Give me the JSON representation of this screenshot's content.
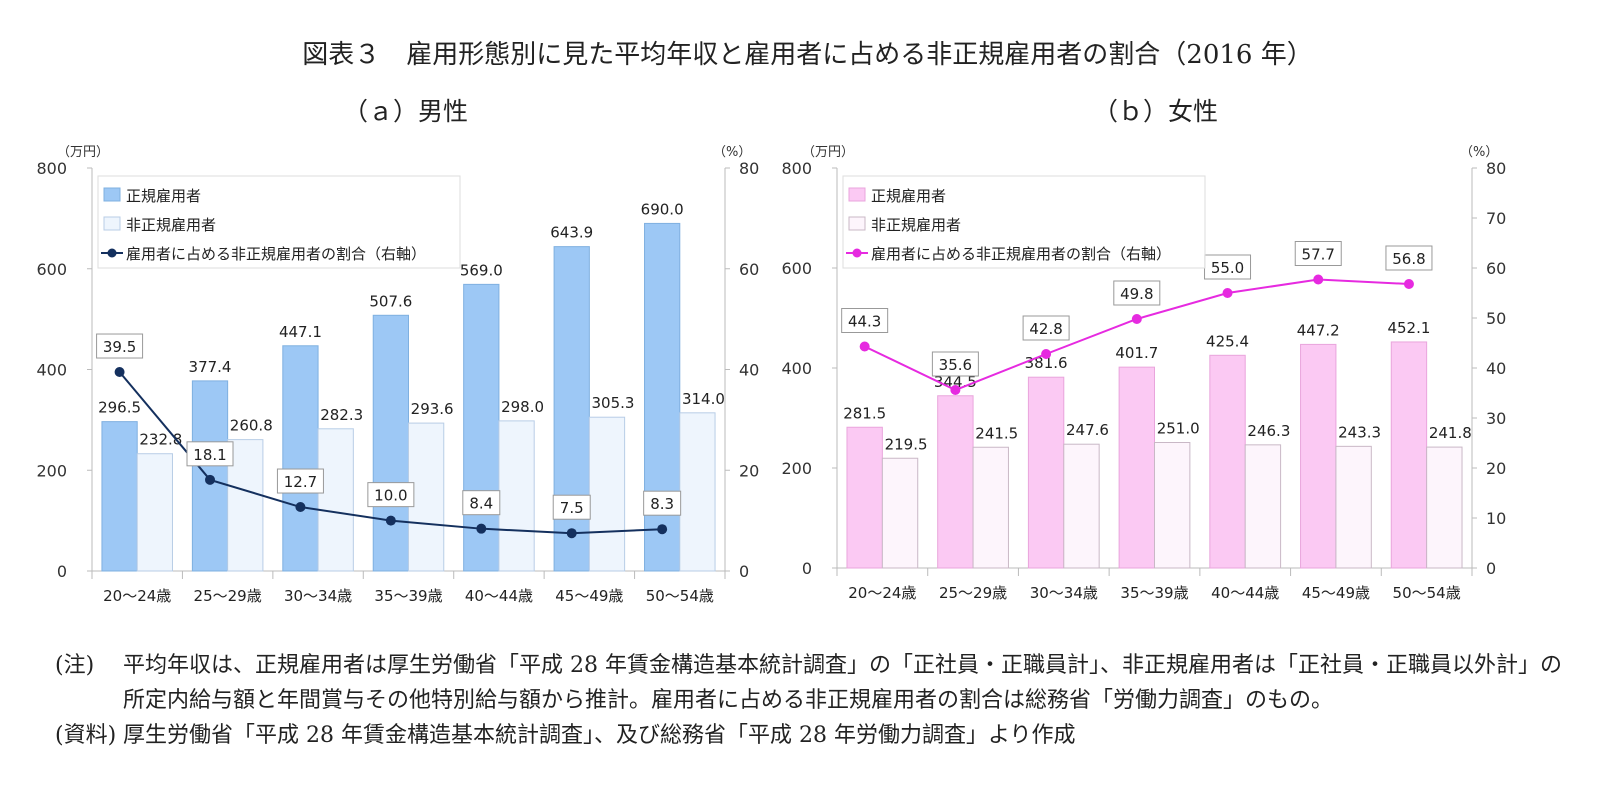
{
  "figure_title": "図表３　雇用形態別に見た平均年収と雇用者に占める非正規雇用者の割合（2016 年）",
  "notes": {
    "note_label": "(注)",
    "note_text": "平均年収は、正規雇用者は厚生労働省「平成 28 年賃金構造基本統計調査」の「正社員・正職員計」、非正規雇用者は「正社員・正職員以外計」の所定内給与額と年間賞与その他特別給与額から推計。雇用者に占める非正規雇用者の割合は総務省「労働力調査」のもの。",
    "source_label": "(資料)",
    "source_text": "厚生労働省「平成 28 年賃金構造基本統計調査」、及び総務省「平成 28 年労働力調査」より作成"
  },
  "chart_data": [
    {
      "type": "bar",
      "title": "（ａ）男性",
      "categories": [
        "20〜24歳",
        "25〜29歳",
        "30〜34歳",
        "35〜39歳",
        "40〜44歳",
        "45〜49歳",
        "50〜54歳"
      ],
      "left_axis_unit": "（万円）",
      "right_axis_unit": "（%）",
      "ylim": [
        0,
        800
      ],
      "yticks": [
        "0",
        "200",
        "400",
        "600",
        "800"
      ],
      "y2lim": [
        0,
        80
      ],
      "y2ticks": [
        "0",
        "20",
        "40",
        "60",
        "80"
      ],
      "series": [
        {
          "name": "正規雇用者",
          "kind": "bar",
          "color": "#9dc8f5",
          "stroke": "#7fb0e0",
          "values": [
            296.5,
            377.4,
            447.1,
            507.6,
            569.0,
            643.9,
            690.0
          ],
          "labels": [
            "296.5",
            "377.4",
            "447.1",
            "507.6",
            "569.0",
            "643.9",
            "690.0"
          ]
        },
        {
          "name": "非正規雇用者",
          "kind": "bar",
          "color": "#eef5fd",
          "stroke": "#b8cde6",
          "values": [
            232.8,
            260.8,
            282.3,
            293.6,
            298.0,
            305.3,
            314.0
          ],
          "labels": [
            "232.8",
            "260.8",
            "282.3",
            "293.6",
            "298.0",
            "305.3",
            "314.0"
          ]
        },
        {
          "name": "雇用者に占める非正規雇用者の割合（右軸）",
          "kind": "line",
          "axis": "right",
          "color": "#14305e",
          "values": [
            39.5,
            18.1,
            12.7,
            10.0,
            8.4,
            7.5,
            8.3
          ],
          "labels": [
            "39.5",
            "18.1",
            "12.7",
            "10.0",
            "8.4",
            "7.5",
            "8.3"
          ]
        }
      ],
      "legend": "top-left"
    },
    {
      "type": "bar",
      "title": "（ｂ）女性",
      "categories": [
        "20〜24歳",
        "25〜29歳",
        "30〜34歳",
        "35〜39歳",
        "40〜44歳",
        "45〜49歳",
        "50〜54歳"
      ],
      "left_axis_unit": "（万円）",
      "right_axis_unit": "（%）",
      "ylim": [
        0,
        800
      ],
      "yticks": [
        "0",
        "200",
        "400",
        "600",
        "800"
      ],
      "y2lim": [
        0,
        80
      ],
      "y2ticks": [
        "0",
        "10",
        "20",
        "30",
        "40",
        "50",
        "60",
        "70",
        "80"
      ],
      "series": [
        {
          "name": "正規雇用者",
          "kind": "bar",
          "color": "#fbc9f3",
          "stroke": "#e9a5dc",
          "values": [
            281.5,
            344.5,
            381.6,
            401.7,
            425.4,
            447.2,
            452.1
          ],
          "labels": [
            "281.5",
            "344.5",
            "381.6",
            "401.7",
            "425.4",
            "447.2",
            "452.1"
          ]
        },
        {
          "name": "非正規雇用者",
          "kind": "bar",
          "color": "#fdf5fc",
          "stroke": "#c9b8c6",
          "values": [
            219.5,
            241.5,
            247.6,
            251.0,
            246.3,
            243.3,
            241.8
          ],
          "labels": [
            "219.5",
            "241.5",
            "247.6",
            "251.0",
            "246.3",
            "243.3",
            "241.8"
          ]
        },
        {
          "name": "雇用者に占める非正規雇用者の割合（右軸）",
          "kind": "line",
          "axis": "right",
          "color": "#e62ae0",
          "values": [
            44.3,
            35.6,
            42.8,
            49.8,
            55.0,
            57.7,
            56.8
          ],
          "labels": [
            "44.3",
            "35.6",
            "42.8",
            "49.8",
            "55.0",
            "57.7",
            "56.8"
          ]
        }
      ],
      "legend": "top-left"
    }
  ]
}
